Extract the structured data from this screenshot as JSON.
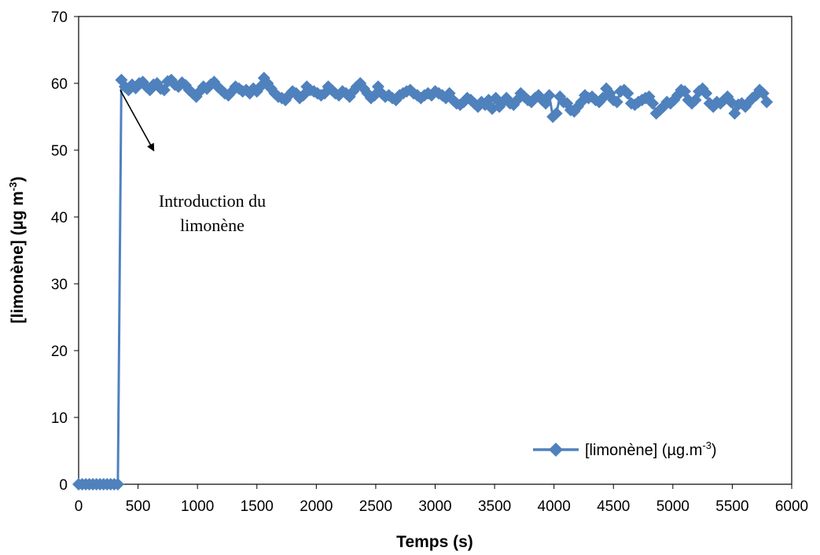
{
  "chart_data": {
    "type": "line",
    "xlabel": "Temps (s)",
    "ylabel_main": "[limonène] (µg m",
    "ylabel_sup": "-3",
    "ylabel_close": ")",
    "xlim": [
      0,
      6000
    ],
    "ylim": [
      0,
      70
    ],
    "xticks": [
      "0",
      "500",
      "1000",
      "1500",
      "2000",
      "2500",
      "3000",
      "3500",
      "4000",
      "4500",
      "5000",
      "5500",
      "6000"
    ],
    "yticks": [
      "0",
      "10",
      "20",
      "30",
      "40",
      "50",
      "60",
      "70"
    ],
    "grid": false,
    "legend_position": "bottom-right",
    "series": [
      {
        "name_main": "[limonène] (µg.m",
        "name_sup": "-3",
        "name_close": ")",
        "color": "#4F81BD",
        "marker": "diamond",
        "x": [
          0,
          30,
          60,
          90,
          120,
          150,
          180,
          210,
          240,
          270,
          300,
          330,
          360,
          390,
          420,
          450,
          480,
          510,
          540,
          570,
          600,
          630,
          660,
          690,
          720,
          750,
          780,
          810,
          840,
          870,
          900,
          930,
          960,
          990,
          1020,
          1050,
          1080,
          1110,
          1140,
          1170,
          1200,
          1230,
          1260,
          1290,
          1320,
          1350,
          1380,
          1410,
          1440,
          1470,
          1500,
          1530,
          1560,
          1590,
          1620,
          1650,
          1680,
          1710,
          1740,
          1770,
          1800,
          1830,
          1860,
          1890,
          1920,
          1950,
          1980,
          2010,
          2040,
          2070,
          2100,
          2130,
          2160,
          2190,
          2220,
          2250,
          2280,
          2310,
          2340,
          2370,
          2400,
          2430,
          2460,
          2490,
          2520,
          2550,
          2580,
          2610,
          2640,
          2670,
          2700,
          2730,
          2760,
          2790,
          2820,
          2850,
          2880,
          2910,
          2940,
          2970,
          3000,
          3030,
          3060,
          3090,
          3120,
          3150,
          3180,
          3210,
          3240,
          3270,
          3300,
          3330,
          3360,
          3390,
          3420,
          3450,
          3480,
          3510,
          3540,
          3570,
          3600,
          3630,
          3660,
          3690,
          3720,
          3750,
          3780,
          3810,
          3840,
          3870,
          3900,
          3930,
          3960,
          3990,
          4020,
          4050,
          4080,
          4110,
          4140,
          4170,
          4200,
          4230,
          4260,
          4290,
          4320,
          4350,
          4380,
          4410,
          4440,
          4470,
          4500,
          4530,
          4560,
          4590,
          4620,
          4650,
          4680,
          4710,
          4740,
          4770,
          4800,
          4830,
          4860,
          4890,
          4920,
          4950,
          4980,
          5010,
          5040,
          5070,
          5100,
          5130,
          5160,
          5190,
          5220,
          5250,
          5280,
          5310,
          5340,
          5370,
          5400,
          5430,
          5460,
          5490,
          5520,
          5550,
          5580,
          5610,
          5640,
          5670,
          5700,
          5730,
          5760,
          5790
        ],
        "y": [
          0,
          0,
          0,
          0,
          0,
          0,
          0,
          0,
          0,
          0,
          0,
          0,
          60.5,
          59.5,
          59,
          59.8,
          59.3,
          60,
          60.2,
          59.5,
          59,
          59.8,
          60,
          59.2,
          59,
          60.3,
          60.5,
          59.8,
          59.5,
          60.1,
          59.7,
          59,
          58.5,
          58,
          58.8,
          59.5,
          59.2,
          59.8,
          60.2,
          59.5,
          59,
          58.5,
          58.2,
          58.8,
          59.5,
          59.2,
          58.8,
          59,
          58.5,
          59.2,
          58.8,
          59.5,
          60.8,
          60,
          59.2,
          58.5,
          58,
          57.8,
          57.5,
          58.2,
          58.8,
          58.5,
          57.8,
          58.2,
          59.5,
          59,
          58.8,
          58.5,
          58.2,
          58.5,
          59.5,
          59,
          58.5,
          58.2,
          58.8,
          58.5,
          58,
          58.8,
          59.5,
          60,
          59.2,
          58.5,
          57.8,
          58.2,
          59.5,
          58.5,
          58,
          58.2,
          57.8,
          57.5,
          58.2,
          58.5,
          58.8,
          59,
          58.5,
          58.2,
          57.8,
          58.2,
          58.5,
          58.2,
          58.8,
          58.5,
          58.2,
          57.8,
          58.5,
          57.5,
          57,
          56.8,
          57.2,
          57.8,
          57.5,
          57,
          56.5,
          57.2,
          56.8,
          57.5,
          56.2,
          57.8,
          56.5,
          57.2,
          57.8,
          57,
          56.8,
          57.5,
          58.5,
          58,
          57.5,
          57.2,
          57.8,
          58.2,
          57.5,
          57,
          58.2,
          55,
          55.5,
          58,
          57.2,
          57,
          56,
          55.8,
          56.5,
          57.2,
          58.2,
          57.8,
          58,
          57.5,
          57.2,
          57.8,
          59.2,
          58.5,
          57.5,
          57.2,
          58.8,
          59,
          58.5,
          57,
          56.8,
          57.2,
          57.5,
          57.8,
          58,
          57,
          55.5,
          56,
          56.5,
          57.2,
          57,
          57.5,
          58.2,
          59,
          58.8,
          57.5,
          57,
          57.5,
          58.8,
          59.2,
          58.5,
          57,
          56.5,
          57.2,
          57,
          57.5,
          58,
          57.2,
          55.5,
          56.8,
          57,
          56.5,
          57.2,
          57.8,
          58.2,
          59,
          58.5,
          57.2
        ]
      }
    ],
    "annotation": {
      "line1": "Introduction du",
      "line2": "limonène",
      "arrow_from": [
        350,
        59
      ],
      "arrow_to": [
        630,
        50
      ]
    }
  }
}
